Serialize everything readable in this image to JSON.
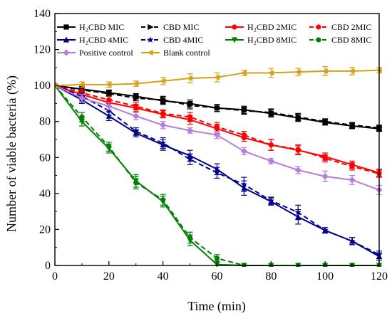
{
  "chart_data": {
    "type": "line",
    "title": "",
    "xlabel": "Time (min)",
    "ylabel": "Number of viable bacteria (%)",
    "xlim": [
      0,
      120
    ],
    "ylim": [
      0,
      140
    ],
    "xticks": [
      0,
      20,
      40,
      60,
      80,
      100,
      120
    ],
    "yticks": [
      0,
      20,
      40,
      60,
      80,
      100,
      120,
      140
    ],
    "x": [
      0,
      10,
      20,
      30,
      40,
      50,
      60,
      70,
      80,
      90,
      100,
      110,
      120
    ],
    "grid": false,
    "legend_position": "top",
    "series": [
      {
        "name": "H₂CBD MIC",
        "color": "#000000",
        "dash": "solid",
        "marker": "square",
        "values": [
          100,
          98,
          96,
          94,
          91.5,
          90,
          87.5,
          86.5,
          84.5,
          82,
          79.5,
          77.5,
          76
        ],
        "errors": [
          0,
          1.5,
          1.5,
          1.5,
          2,
          2,
          2,
          2,
          2,
          2,
          1.5,
          1.5,
          1.5
        ]
      },
      {
        "name": "CBD MIC",
        "color": "#000000",
        "dash": "dashed",
        "marker": "triangle-right",
        "values": [
          100,
          97.5,
          95.5,
          93,
          92,
          89,
          87.5,
          86,
          85,
          82.5,
          80,
          78,
          76.5
        ],
        "errors": [
          0,
          1.5,
          1.5,
          1.5,
          2,
          2,
          2,
          2,
          2,
          2,
          1.5,
          1.5,
          1.5
        ]
      },
      {
        "name": "H₂CBD 2MIC",
        "color": "#ff0000",
        "dash": "solid",
        "marker": "circle",
        "values": [
          100,
          95,
          90.5,
          87.5,
          84,
          81,
          76,
          71,
          67,
          64,
          60.5,
          56,
          51.5
        ],
        "errors": [
          0,
          2,
          2,
          2,
          2,
          2.5,
          2.5,
          2,
          3,
          2.5,
          2,
          2,
          2
        ]
      },
      {
        "name": "CBD 2MIC",
        "color": "#ff0000",
        "dash": "dashed",
        "marker": "circle",
        "values": [
          100,
          96,
          92,
          88.5,
          84.5,
          82.5,
          77,
          72.5,
          67,
          64.5,
          59.5,
          55,
          51
        ],
        "errors": [
          0,
          2,
          2,
          2,
          2,
          2.5,
          2.5,
          2,
          3,
          2.5,
          2,
          2,
          2
        ]
      },
      {
        "name": "H₂CBD 4MIC",
        "color": "#00008b",
        "dash": "solid",
        "marker": "triangle-up",
        "values": [
          100,
          92,
          83,
          73.5,
          67,
          61,
          53.5,
          43,
          35.5,
          27,
          19.5,
          13.5,
          5
        ],
        "errors": [
          0,
          2,
          2.5,
          2,
          3,
          3,
          3,
          4,
          2,
          4,
          1.5,
          2,
          2
        ]
      },
      {
        "name": "CBD 4MIC",
        "color": "#00008b",
        "dash": "dashed",
        "marker": "star",
        "values": [
          100,
          94,
          86,
          74.5,
          68,
          59,
          51.5,
          45,
          36,
          29.5,
          19.5,
          13.5,
          6
        ],
        "errors": [
          0,
          2,
          2.5,
          2,
          3,
          3,
          3,
          4,
          2,
          4,
          1.5,
          2,
          2
        ]
      },
      {
        "name": "H₂CBD 8MIC",
        "color": "#008000",
        "dash": "solid",
        "marker": "triangle-down",
        "values": [
          100,
          80,
          65,
          47,
          35.5,
          14,
          0.5,
          0,
          0,
          0,
          0,
          0,
          0
        ],
        "errors": [
          0,
          2.5,
          2.5,
          3.5,
          3,
          3,
          2,
          0,
          0,
          0,
          0,
          0,
          0
        ]
      },
      {
        "name": "CBD 8MIC",
        "color": "#008000",
        "dash": "dashed",
        "marker": "circle",
        "values": [
          100,
          82.5,
          66,
          46,
          36.5,
          15.5,
          4,
          0,
          0,
          0,
          0,
          0,
          0
        ],
        "errors": [
          0,
          2.5,
          2.5,
          3.5,
          3,
          3,
          2,
          0,
          0,
          0,
          0,
          0,
          0
        ]
      },
      {
        "name": "Positive control",
        "color": "#b57edc",
        "dash": "solid",
        "marker": "diamond",
        "values": [
          100,
          93,
          88.5,
          83,
          78,
          75,
          72.5,
          63.5,
          58,
          53,
          49.5,
          47.5,
          42
        ],
        "errors": [
          0,
          2,
          2,
          2,
          2,
          1.5,
          2,
          2,
          1.5,
          2,
          3,
          2.5,
          2.5
        ]
      },
      {
        "name": "Blank control",
        "color": "#d4a017",
        "dash": "solid",
        "marker": "triangle-left",
        "values": [
          100,
          100.5,
          100.5,
          101,
          102.5,
          104,
          104.5,
          107,
          107,
          107.5,
          108,
          108,
          108.5
        ],
        "errors": [
          0,
          1.5,
          1.5,
          1.5,
          2,
          2.5,
          2.5,
          1.5,
          2.5,
          2,
          2.5,
          2,
          1.5
        ]
      }
    ]
  }
}
